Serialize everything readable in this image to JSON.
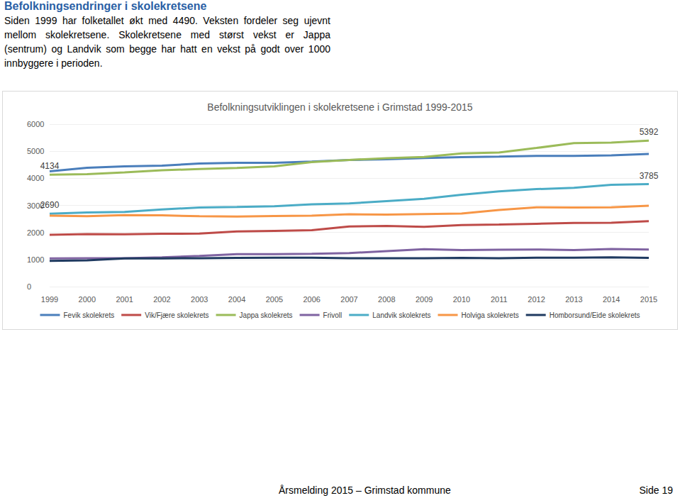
{
  "heading": "Befolkningsendringer i skolekretsene",
  "intro": "Siden 1999 har folketallet økt med 4490. Veksten fordeler seg ujevnt mellom skolekretsene. Skolekretsene med størst vekst er Jappa (sentrum) og Landvik som begge har hatt en vekst på godt over 1000 innbyggere i perioden.",
  "footer": {
    "left": "Årsmelding 2015 – Grimstad kommune",
    "right": "Side 19"
  },
  "chart_data": {
    "type": "line",
    "title": "Befolkningsutviklingen i skolekretsene i Grimstad 1999-2015",
    "categories": [
      "1999",
      "2000",
      "2001",
      "2002",
      "2003",
      "2004",
      "2005",
      "2006",
      "2007",
      "2008",
      "2009",
      "2010",
      "2011",
      "2012",
      "2013",
      "2014",
      "2015"
    ],
    "ylim": [
      0,
      6000
    ],
    "yticks": [
      0,
      1000,
      2000,
      3000,
      4000,
      5000,
      6000
    ],
    "grid": true,
    "legend": "bottom",
    "series": [
      {
        "name": "Fevik skolekrets",
        "color": "#4a7ebb",
        "values": [
          4260,
          4390,
          4440,
          4470,
          4545,
          4570,
          4570,
          4620,
          4680,
          4700,
          4750,
          4780,
          4800,
          4830,
          4830,
          4850,
          4900
        ]
      },
      {
        "name": "Vik/Fjære skolekrets",
        "color": "#be4b48",
        "values": [
          1910,
          1940,
          1930,
          1950,
          1960,
          2040,
          2060,
          2080,
          2220,
          2240,
          2210,
          2270,
          2290,
          2320,
          2350,
          2360,
          2420
        ]
      },
      {
        "name": "Jappa skolekrets",
        "color": "#9bbb59",
        "values": [
          4134,
          4150,
          4220,
          4300,
          4340,
          4380,
          4440,
          4600,
          4680,
          4740,
          4790,
          4920,
          4950,
          5120,
          5300,
          5320,
          5392
        ]
      },
      {
        "name": "Frivoll",
        "color": "#7f63a1",
        "values": [
          1040,
          1050,
          1050,
          1080,
          1130,
          1200,
          1200,
          1210,
          1240,
          1310,
          1380,
          1350,
          1360,
          1370,
          1350,
          1390,
          1370
        ]
      },
      {
        "name": "Landvik skolekrets",
        "color": "#4bacc6",
        "values": [
          2690,
          2740,
          2760,
          2850,
          2920,
          2940,
          2970,
          3040,
          3070,
          3160,
          3240,
          3390,
          3520,
          3600,
          3650,
          3760,
          3785
        ]
      },
      {
        "name": "Holviga skolekrets",
        "color": "#f79646",
        "values": [
          2620,
          2600,
          2640,
          2630,
          2600,
          2590,
          2610,
          2620,
          2670,
          2660,
          2680,
          2700,
          2830,
          2930,
          2920,
          2930,
          2990
        ]
      },
      {
        "name": "Homborsund/Eide skolekrets",
        "color": "#1f3a60",
        "values": [
          950,
          970,
          1040,
          1040,
          1050,
          1060,
          1070,
          1070,
          1050,
          1050,
          1050,
          1060,
          1050,
          1070,
          1070,
          1080,
          1060
        ]
      }
    ],
    "annotations": [
      {
        "series": "Jappa skolekrets",
        "x": "1999",
        "text": "4134"
      },
      {
        "series": "Jappa skolekrets",
        "x": "2015",
        "text": "5392"
      },
      {
        "series": "Landvik skolekrets",
        "x": "1999",
        "text": "2690"
      },
      {
        "series": "Landvik skolekrets",
        "x": "2015",
        "text": "3785"
      }
    ]
  }
}
